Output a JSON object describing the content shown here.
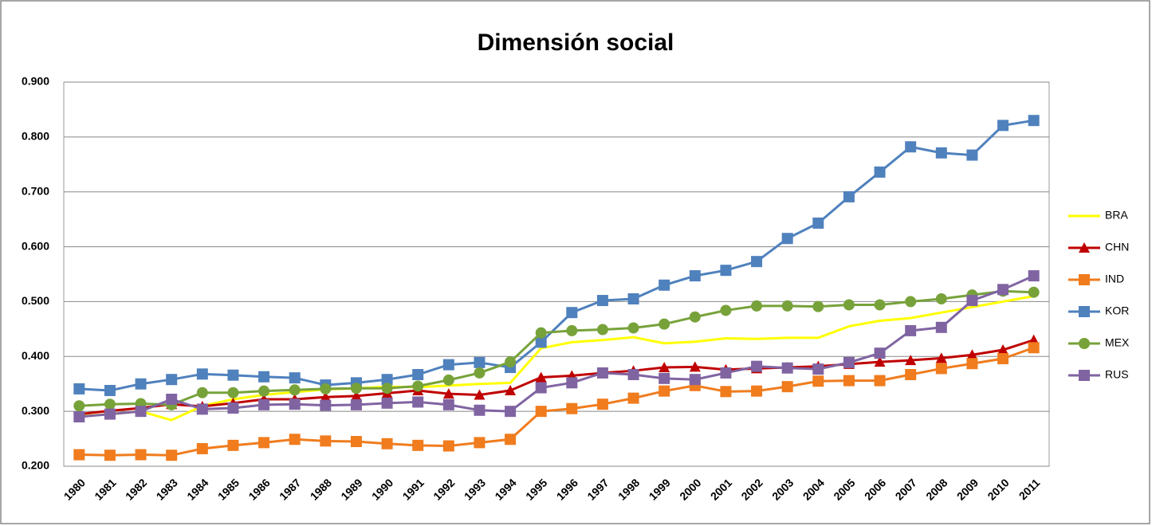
{
  "chart_data": {
    "type": "line",
    "title": "Dimensión social",
    "categories": [
      "1980",
      "1981",
      "1982",
      "1983",
      "1984",
      "1985",
      "1986",
      "1987",
      "1988",
      "1989",
      "1990",
      "1991",
      "1992",
      "1993",
      "1994",
      "1995",
      "1996",
      "1997",
      "1998",
      "1999",
      "2000",
      "2001",
      "2002",
      "2003",
      "2004",
      "2005",
      "2006",
      "2007",
      "2008",
      "2009",
      "2010",
      "2011"
    ],
    "ylim": [
      0.2,
      0.9
    ],
    "yticks": [
      {
        "value": 0.2,
        "label": "0.200"
      },
      {
        "value": 0.3,
        "label": "0.300"
      },
      {
        "value": 0.4,
        "label": "0.400"
      },
      {
        "value": 0.5,
        "label": "0.500"
      },
      {
        "value": 0.6,
        "label": "0.600"
      },
      {
        "value": 0.7,
        "label": "0.700"
      },
      {
        "value": 0.8,
        "label": "0.800"
      },
      {
        "value": 0.9,
        "label": "0.900"
      }
    ],
    "grid": true,
    "legend": "right",
    "series": [
      {
        "name": "BRA",
        "color": "#ffff00",
        "marker": "none",
        "values": [
          0.291,
          0.295,
          0.3,
          0.284,
          0.31,
          0.322,
          0.33,
          0.335,
          0.34,
          0.342,
          0.345,
          0.344,
          0.347,
          0.35,
          0.352,
          0.415,
          0.426,
          0.43,
          0.435,
          0.424,
          0.427,
          0.433,
          0.432,
          0.434,
          0.434,
          0.455,
          0.465,
          0.47,
          0.48,
          0.49,
          0.5,
          0.51
        ]
      },
      {
        "name": "CHN",
        "color": "#c00000",
        "marker": "triangle",
        "values": [
          0.295,
          0.301,
          0.306,
          0.313,
          0.309,
          0.315,
          0.322,
          0.322,
          0.326,
          0.328,
          0.333,
          0.338,
          0.332,
          0.33,
          0.338,
          0.362,
          0.365,
          0.37,
          0.374,
          0.38,
          0.381,
          0.376,
          0.378,
          0.38,
          0.382,
          0.386,
          0.39,
          0.393,
          0.397,
          0.403,
          0.412,
          0.43
        ]
      },
      {
        "name": "IND",
        "color": "#f07c1e",
        "marker": "square",
        "values": [
          0.221,
          0.22,
          0.221,
          0.22,
          0.232,
          0.238,
          0.243,
          0.249,
          0.246,
          0.245,
          0.241,
          0.238,
          0.237,
          0.243,
          0.249,
          0.3,
          0.305,
          0.313,
          0.324,
          0.337,
          0.347,
          0.336,
          0.337,
          0.345,
          0.355,
          0.356,
          0.356,
          0.367,
          0.378,
          0.387,
          0.396,
          0.416
        ]
      },
      {
        "name": "KOR",
        "color": "#4f81bd",
        "marker": "square",
        "values": [
          0.341,
          0.338,
          0.35,
          0.358,
          0.368,
          0.366,
          0.363,
          0.361,
          0.348,
          0.352,
          0.358,
          0.367,
          0.385,
          0.389,
          0.38,
          0.426,
          0.48,
          0.502,
          0.505,
          0.53,
          0.547,
          0.557,
          0.573,
          0.615,
          0.643,
          0.691,
          0.736,
          0.782,
          0.771,
          0.767,
          0.821,
          0.83
        ]
      },
      {
        "name": "MEX",
        "color": "#77a23a",
        "marker": "circle",
        "values": [
          0.31,
          0.313,
          0.314,
          0.312,
          0.334,
          0.334,
          0.337,
          0.339,
          0.341,
          0.342,
          0.342,
          0.346,
          0.357,
          0.37,
          0.39,
          0.443,
          0.447,
          0.449,
          0.452,
          0.459,
          0.472,
          0.484,
          0.492,
          0.492,
          0.491,
          0.494,
          0.494,
          0.5,
          0.505,
          0.512,
          0.519,
          0.517
        ]
      },
      {
        "name": "RUS",
        "color": "#8064a2",
        "marker": "square",
        "values": [
          0.29,
          0.295,
          0.3,
          0.322,
          0.304,
          0.306,
          0.312,
          0.313,
          0.311,
          0.312,
          0.315,
          0.317,
          0.312,
          0.302,
          0.3,
          0.343,
          0.352,
          0.37,
          0.367,
          0.36,
          0.358,
          0.37,
          0.382,
          0.379,
          0.377,
          0.389,
          0.406,
          0.447,
          0.453,
          0.502,
          0.522,
          0.547
        ]
      }
    ]
  }
}
